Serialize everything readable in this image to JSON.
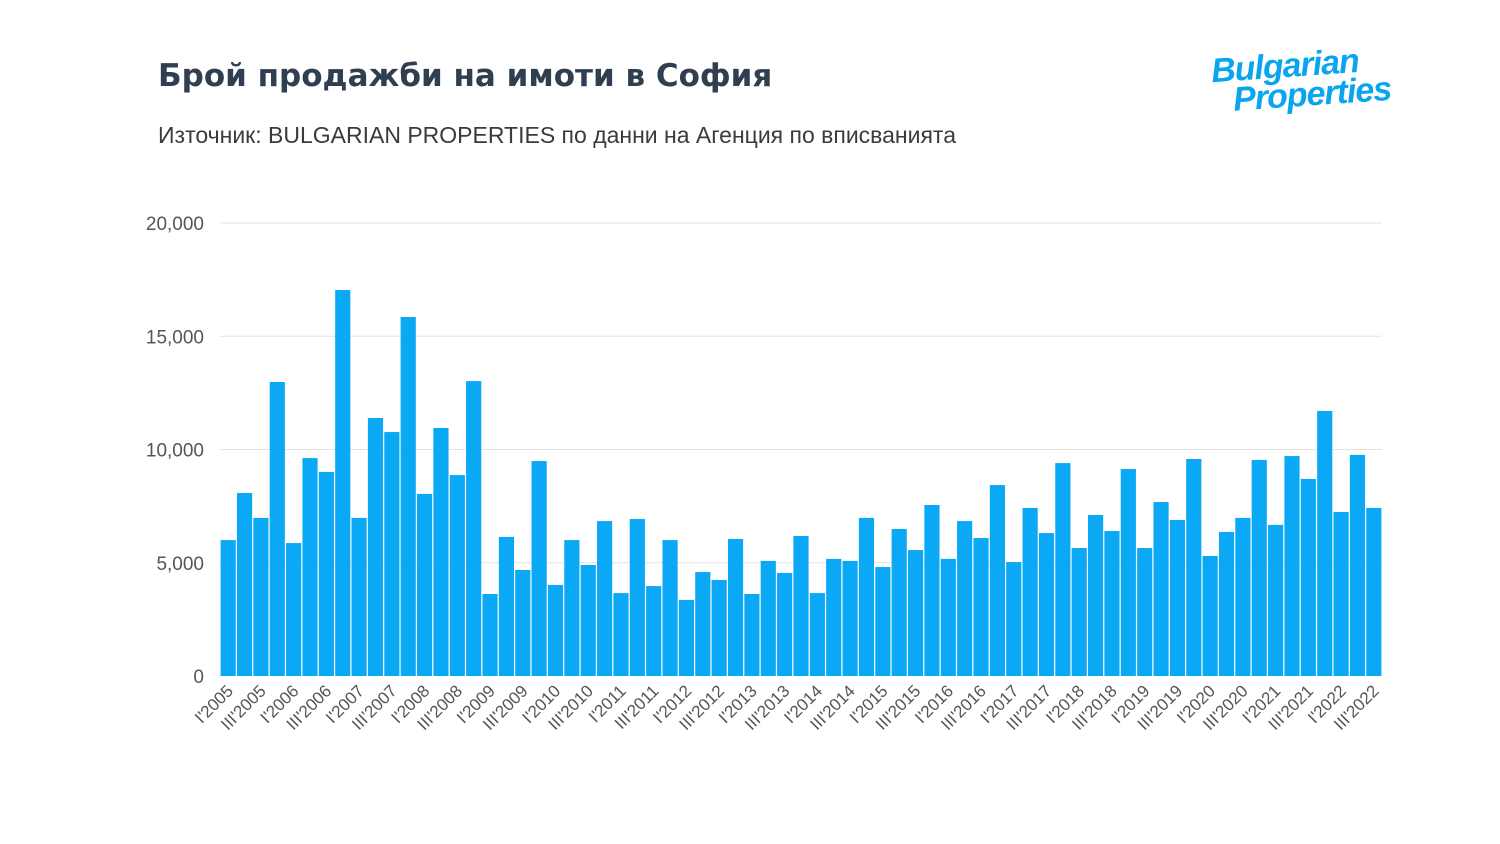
{
  "title": "Брой продажби на имоти в София",
  "subtitle": "Източник: BULGARIAN PROPERTIES по данни на Агенция по вписванията",
  "logo": {
    "line1": "Bulgarian",
    "line2": "Properties",
    "color": "#0aa5ef"
  },
  "chart_data": {
    "type": "bar",
    "title": "Брой продажби на имоти в София",
    "xlabel": "",
    "ylabel": "",
    "ylim": [
      0,
      20000
    ],
    "yticks": [
      "0",
      "5,000",
      "10,000",
      "15,000",
      "20,000"
    ],
    "ytick_values": [
      0,
      5000,
      10000,
      15000,
      20000
    ],
    "grid": true,
    "bar_color": "#0aa8f5",
    "categories": [
      "I'2005",
      "II'2005",
      "III'2005",
      "IV'2005",
      "I'2006",
      "II'2006",
      "III'2006",
      "IV'2006",
      "I'2007",
      "II'2007",
      "III'2007",
      "IV'2007",
      "I'2008",
      "II'2008",
      "III'2008",
      "IV'2008",
      "I'2009",
      "II'2009",
      "III'2009",
      "IV'2009",
      "I'2010",
      "II'2010",
      "III'2010",
      "IV'2010",
      "I'2011",
      "II'2011",
      "III'2011",
      "IV'2011",
      "I'2012",
      "II'2012",
      "III'2012",
      "IV'2012",
      "I'2013",
      "II'2013",
      "III'2013",
      "IV'2013",
      "I'2014",
      "II'2014",
      "III'2014",
      "IV'2014",
      "I'2015",
      "II'2015",
      "III'2015",
      "IV'2015",
      "I'2016",
      "II'2016",
      "III'2016",
      "IV'2016",
      "I'2017",
      "II'2017",
      "III'2017",
      "IV'2017",
      "I'2018",
      "II'2018",
      "III'2018",
      "IV'2018",
      "I'2019",
      "II'2019",
      "III'2019",
      "IV'2019",
      "I'2020",
      "II'2020",
      "III'2020",
      "IV'2020",
      "I'2021",
      "II'2021",
      "III'2021",
      "IV'2021",
      "I'2022",
      "II'2022",
      "III'2022"
    ],
    "shown_tick_labels": [
      "I'2005",
      "III'2005",
      "I'2006",
      "III'2006",
      "I'2007",
      "III'2007",
      "I'2008",
      "III'2008",
      "I'2009",
      "III'2009",
      "I'2010",
      "III'2010",
      "I'2011",
      "III'2011",
      "I'2012",
      "III'2012",
      "I'2013",
      "III'2013",
      "I'2014",
      "III'2014",
      "I'2015",
      "III'2015",
      "I'2016",
      "III'2016",
      "I'2017",
      "III'2017",
      "I'2018",
      "III'2018",
      "I'2019",
      "III'2019",
      "I'2020",
      "III'2020",
      "I'2021",
      "III'2021",
      "I'2022",
      "III'2022"
    ],
    "values": [
      6000,
      8080,
      6980,
      12980,
      5870,
      9620,
      9010,
      17040,
      6980,
      11390,
      10770,
      15850,
      8040,
      10950,
      8870,
      13020,
      3620,
      6140,
      4680,
      9490,
      4020,
      6000,
      4900,
      6840,
      3660,
      6930,
      3970,
      6000,
      3360,
      4590,
      4240,
      6050,
      3620,
      5080,
      4550,
      6180,
      3660,
      5170,
      5080,
      6980,
      4810,
      6490,
      5560,
      7550,
      5170,
      6840,
      6090,
      8430,
      5030,
      7420,
      6310,
      9400,
      5650,
      7110,
      6400,
      9140,
      5650,
      7680,
      6890,
      9580,
      5300,
      6360,
      6980,
      9540,
      6670,
      9710,
      8700,
      11700,
      7240,
      9760,
      7420
    ]
  }
}
